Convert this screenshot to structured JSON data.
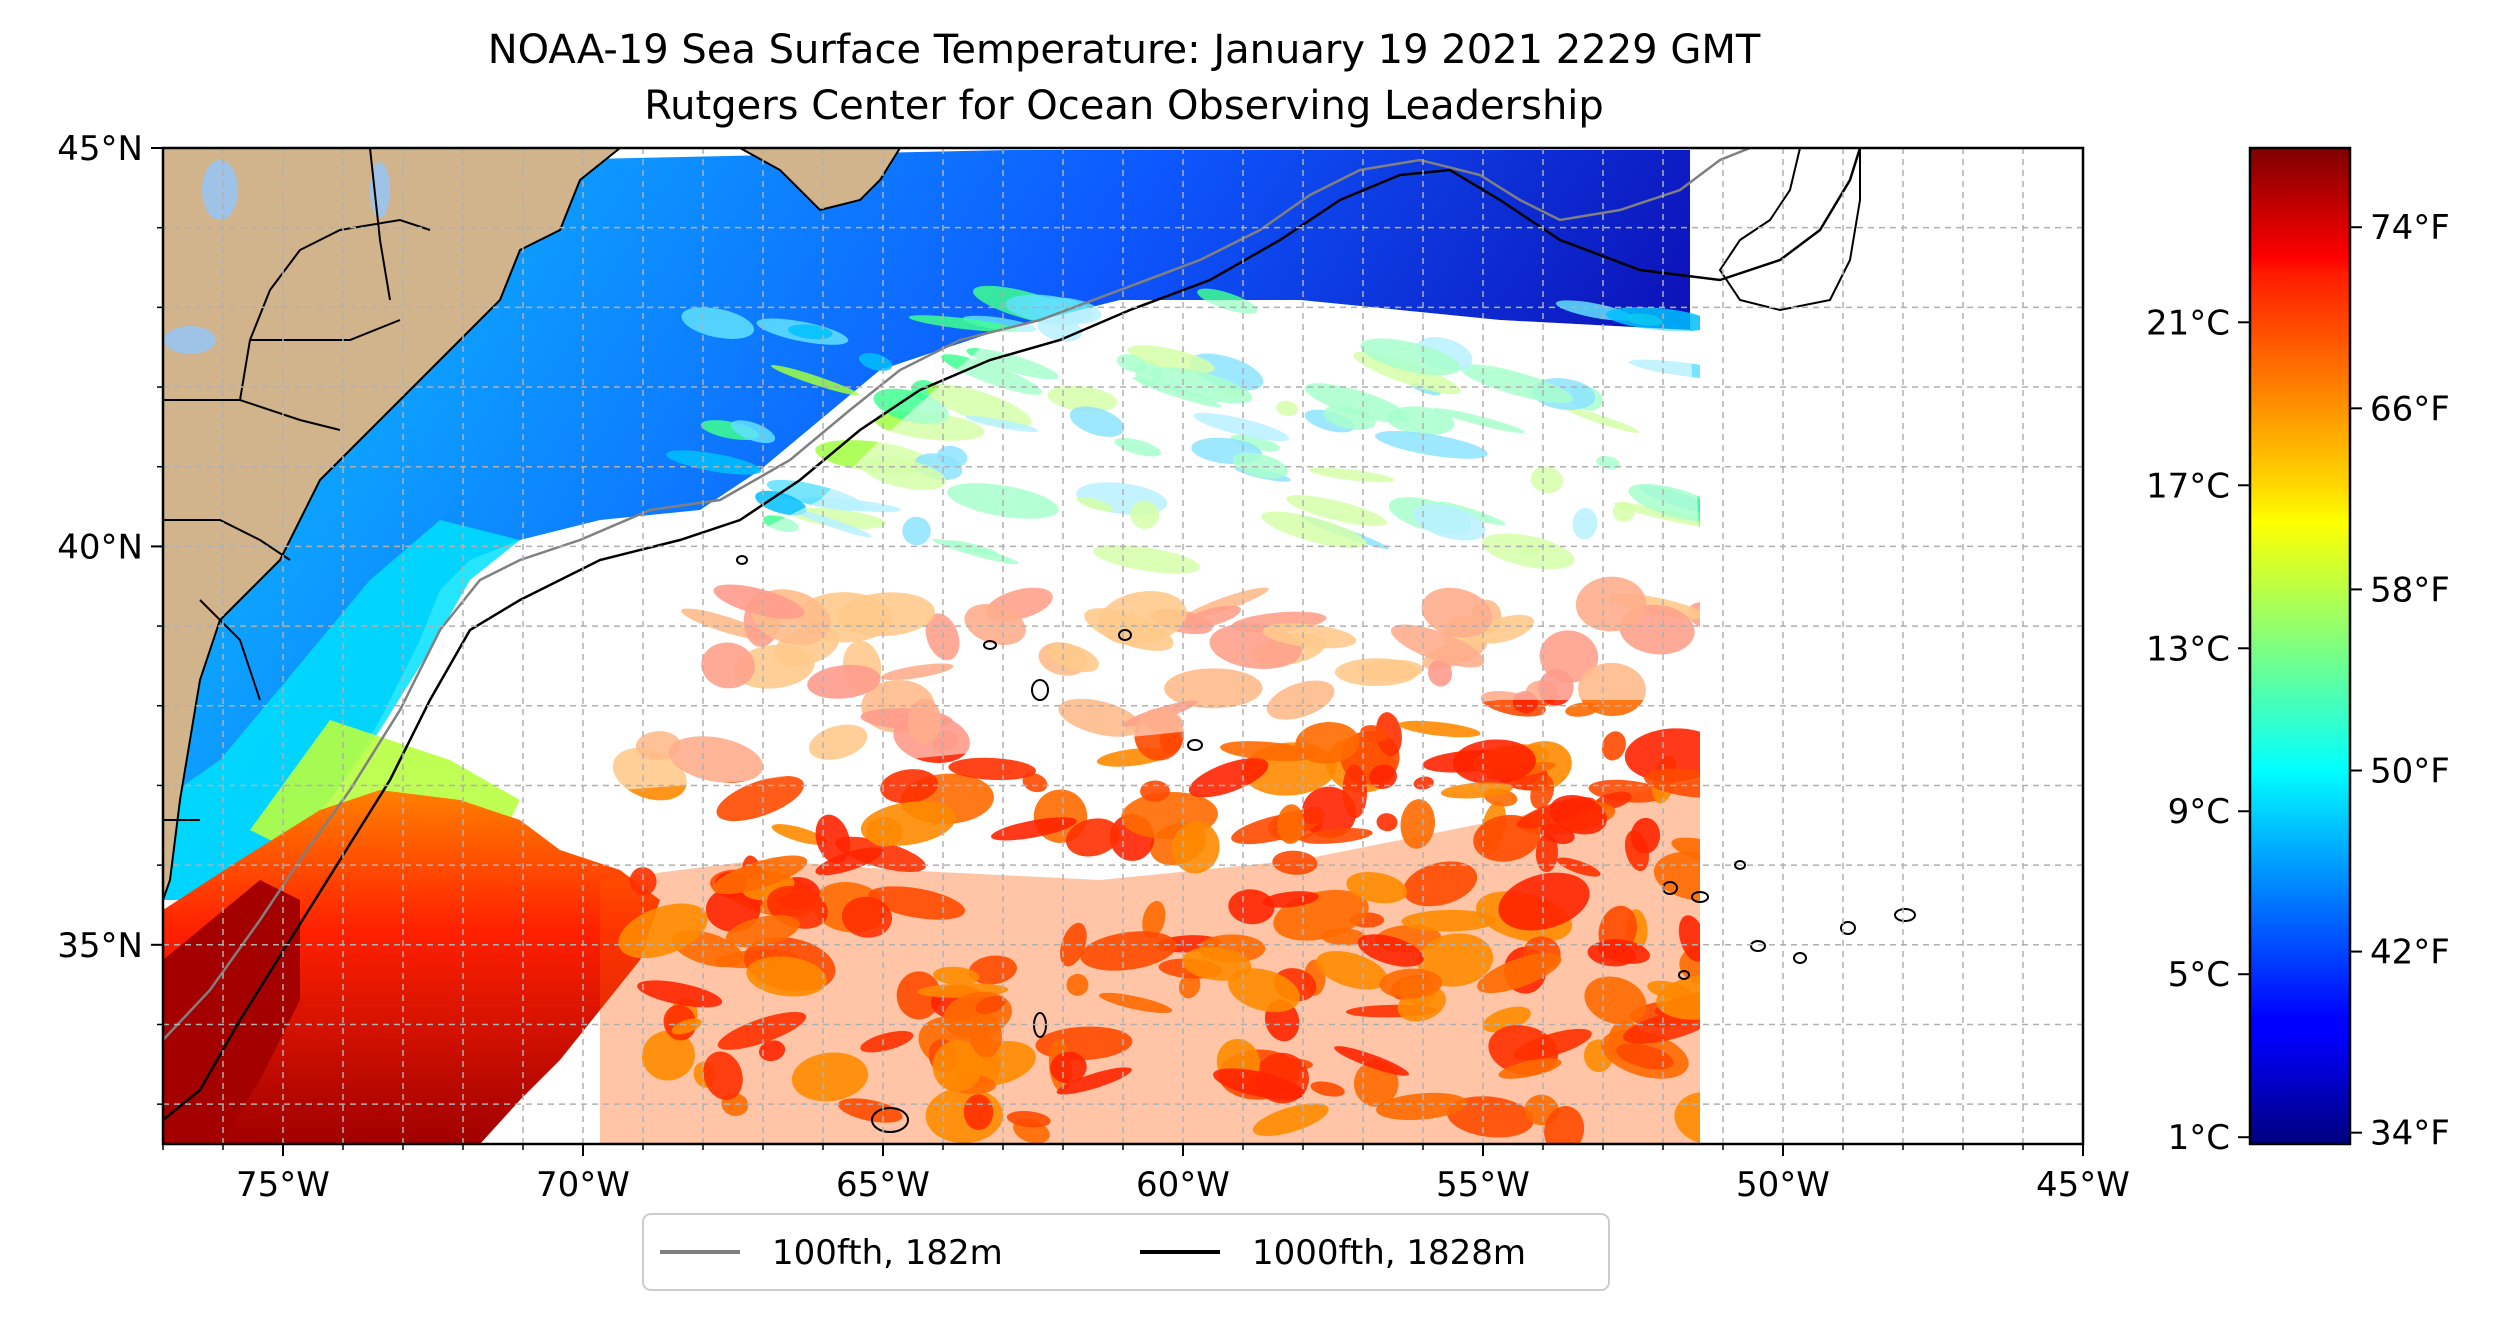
{
  "title": "NOAA-19 Sea Surface Temperature: January 19 2021 2229 GMT",
  "subtitle": "Rutgers Center for Ocean Observing Leadership",
  "map": {
    "lon_range": [
      -77,
      -45
    ],
    "lat_range": [
      32.5,
      45
    ],
    "x_ticks": [
      {
        "value": -75,
        "label": "75°W"
      },
      {
        "value": -70,
        "label": "70°W"
      },
      {
        "value": -65,
        "label": "65°W"
      },
      {
        "value": -60,
        "label": "60°W"
      },
      {
        "value": -55,
        "label": "55°W"
      },
      {
        "value": -50,
        "label": "50°W"
      },
      {
        "value": -45,
        "label": "45°W"
      }
    ],
    "y_ticks": [
      {
        "value": 45,
        "label": "45°N"
      },
      {
        "value": 40,
        "label": "40°N"
      },
      {
        "value": 35,
        "label": "35°N"
      }
    ],
    "grid": true,
    "land_color": "#d2b48c",
    "lake_color": "#9ec3e6"
  },
  "legend": {
    "placement": "bottom-center",
    "entries": [
      {
        "label": "100fth, 182m",
        "color": "#808080"
      },
      {
        "label": "1000fth, 1828m",
        "color": "#000000"
      }
    ]
  },
  "colorbar": {
    "colormap": "jet",
    "celsius_ticks": [
      {
        "value": 1,
        "label": "1°C"
      },
      {
        "value": 5,
        "label": "5°C"
      },
      {
        "value": 9,
        "label": "9°C"
      },
      {
        "value": 13,
        "label": "13°C"
      },
      {
        "value": 17,
        "label": "17°C"
      },
      {
        "value": 21,
        "label": "21°C"
      }
    ],
    "fahrenheit_ticks": [
      {
        "value": 34,
        "label": "34°F"
      },
      {
        "value": 42,
        "label": "42°F"
      },
      {
        "value": 50,
        "label": "50°F"
      },
      {
        "value": 58,
        "label": "58°F"
      },
      {
        "value": 66,
        "label": "66°F"
      },
      {
        "value": 74,
        "label": "74°F"
      }
    ],
    "range_f": [
      33.5,
      77.5
    ]
  }
}
